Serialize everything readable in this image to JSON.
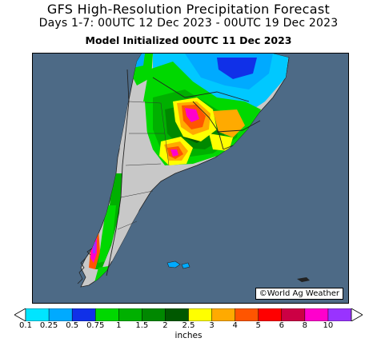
{
  "header": {
    "title": "GFS High-Resolution Precipitation Forecast",
    "subtitle": "Days 1-7: 00UTC 12 Dec 2023 - 00UTC 19 Dec 2023",
    "init_line": "Model Initialized 00UTC 11 Dec 2023"
  },
  "map": {
    "credit": "©World Ag Weather",
    "colors": {
      "ocean": "#4d6a86",
      "land_dry": "#c8c8c8",
      "border": "#222222"
    }
  },
  "legend": {
    "units": "inches",
    "ticks": [
      "0.1",
      "0.25",
      "0.5",
      "0.75",
      "1",
      "1.5",
      "2",
      "2.5",
      "3",
      "4",
      "5",
      "6",
      "8",
      "10"
    ],
    "colors": [
      "#00e5ff",
      "#00aaff",
      "#1030e8",
      "#00d800",
      "#00b000",
      "#008800",
      "#005800",
      "#ffff00",
      "#ffaa00",
      "#ff5500",
      "#ff0000",
      "#cc0044",
      "#ff00cc",
      "#9933ff"
    ]
  }
}
